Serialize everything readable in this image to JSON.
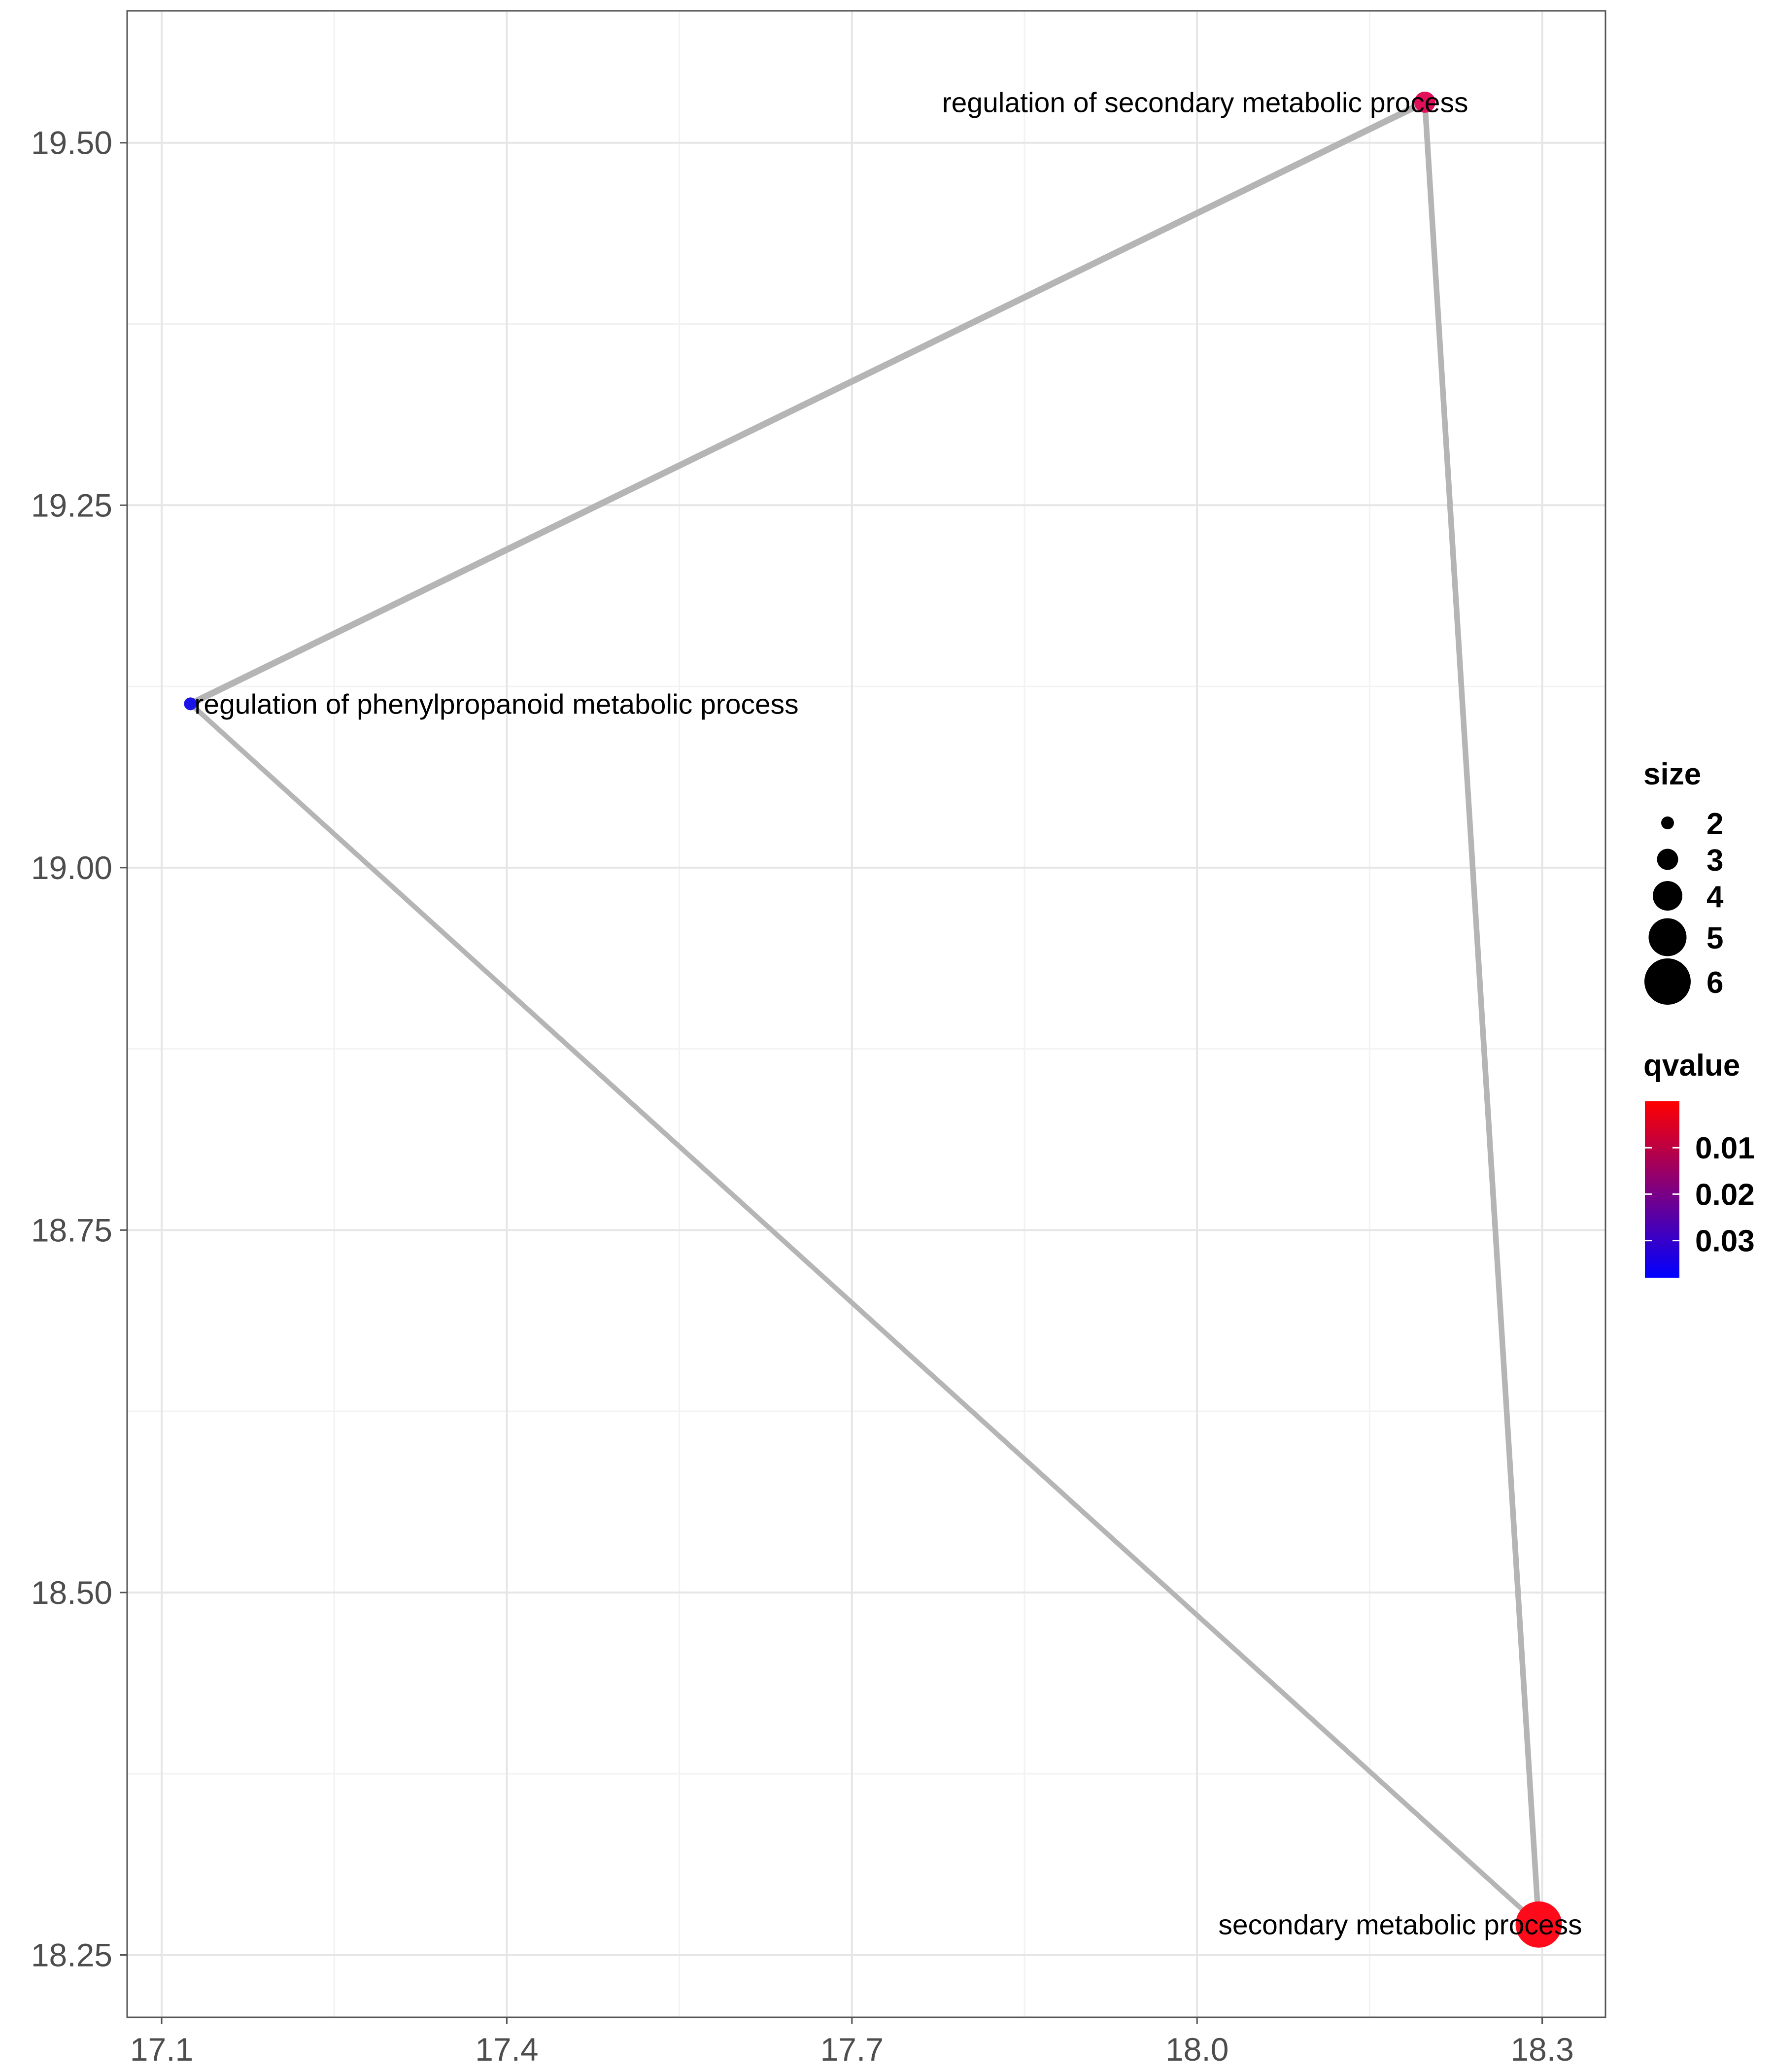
{
  "chart_data": {
    "type": "network",
    "title": "",
    "xlabel": "",
    "ylabel": "",
    "xlim": [
      17.07,
      18.355
    ],
    "ylim": [
      18.207,
      19.591
    ],
    "x_ticks": [
      17.1,
      17.4,
      17.7,
      18.0,
      18.3
    ],
    "x_tick_labels": [
      "17.1",
      "17.4",
      "17.7",
      "18.0",
      "18.3"
    ],
    "y_ticks": [
      18.25,
      18.5,
      18.75,
      19.0,
      19.25,
      19.5
    ],
    "y_tick_labels": [
      "18.25",
      "18.50",
      "18.75",
      "19.00",
      "19.25",
      "19.50"
    ],
    "grid": true,
    "nodes": [
      {
        "label": "regulation of secondary metabolic process",
        "x": 18.198,
        "y": 19.528,
        "size": 3,
        "qvalue": 0.012,
        "color": "#e0105a",
        "label_anchor": "end"
      },
      {
        "label": "regulation of phenylpropanoid metabolic process",
        "x": 17.125,
        "y": 19.113,
        "size": 2,
        "qvalue": 0.035,
        "color": "#1a14e8",
        "label_anchor": "start"
      },
      {
        "label": "secondary metabolic process",
        "x": 18.297,
        "y": 18.271,
        "size": 6,
        "qvalue": 0.004,
        "color": "#ff0a1a",
        "label_anchor": "end"
      }
    ],
    "edges": [
      {
        "from": 0,
        "to": 1,
        "weight": 1.3
      },
      {
        "from": 0,
        "to": 2,
        "weight": 1.15
      },
      {
        "from": 1,
        "to": 2,
        "weight": 1.0
      }
    ],
    "legend": {
      "position": "right",
      "size": {
        "title": "size",
        "values": [
          2,
          3,
          4,
          5,
          6
        ],
        "labels": [
          "2",
          "3",
          "4",
          "5",
          "6"
        ]
      },
      "qvalue": {
        "title": "qvalue",
        "min": 0.0,
        "max": 0.038,
        "ticks": [
          0.01,
          0.02,
          0.03
        ],
        "tick_labels": [
          "0.01",
          "0.02",
          "0.03"
        ],
        "low_color": "#ff0000",
        "high_color": "#0000ff"
      }
    }
  }
}
